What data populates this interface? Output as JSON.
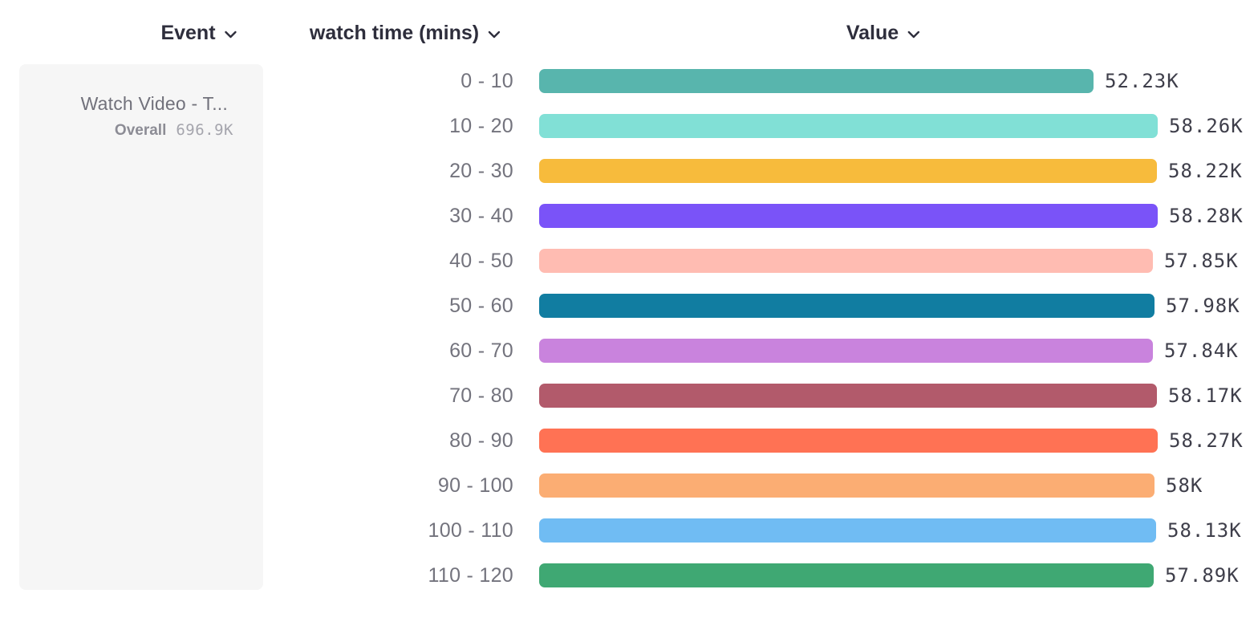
{
  "header": {
    "columns": [
      {
        "label": "Event"
      },
      {
        "label": "watch time (mins)"
      },
      {
        "label": "Value"
      }
    ]
  },
  "legend": {
    "event_name": "Watch Video - T...",
    "overall_label": "Overall",
    "overall_value": "696.9K"
  },
  "chart_data": {
    "type": "bar",
    "orientation": "horizontal",
    "title": "",
    "xlabel": "Value",
    "ylabel": "watch time (mins)",
    "xlim_k": [
      0,
      58.28
    ],
    "grid": false,
    "legend_position": "left",
    "categories": [
      "0 - 10",
      "10 - 20",
      "20 - 30",
      "30 - 40",
      "40 - 50",
      "50 - 60",
      "60 - 70",
      "70 - 80",
      "80 - 90",
      "90 - 100",
      "100 - 110",
      "110 - 120"
    ],
    "values_k": [
      52.23,
      58.26,
      58.22,
      58.28,
      57.85,
      57.98,
      57.84,
      58.17,
      58.27,
      58.0,
      58.13,
      57.89
    ],
    "value_labels": [
      "52.23K",
      "58.26K",
      "58.22K",
      "58.28K",
      "57.85K",
      "57.98K",
      "57.84K",
      "58.17K",
      "58.27K",
      "58K",
      "58.13K",
      "57.89K"
    ],
    "bar_colors": [
      "#58B5AD",
      "#81E0D6",
      "#F7BB3C",
      "#7A53F8",
      "#FFBCB2",
      "#117DA1",
      "#C983DD",
      "#B25A6B",
      "#FF7254",
      "#FBAD73",
      "#70BCF3",
      "#3FA873"
    ],
    "max_value_k": 58.28
  }
}
